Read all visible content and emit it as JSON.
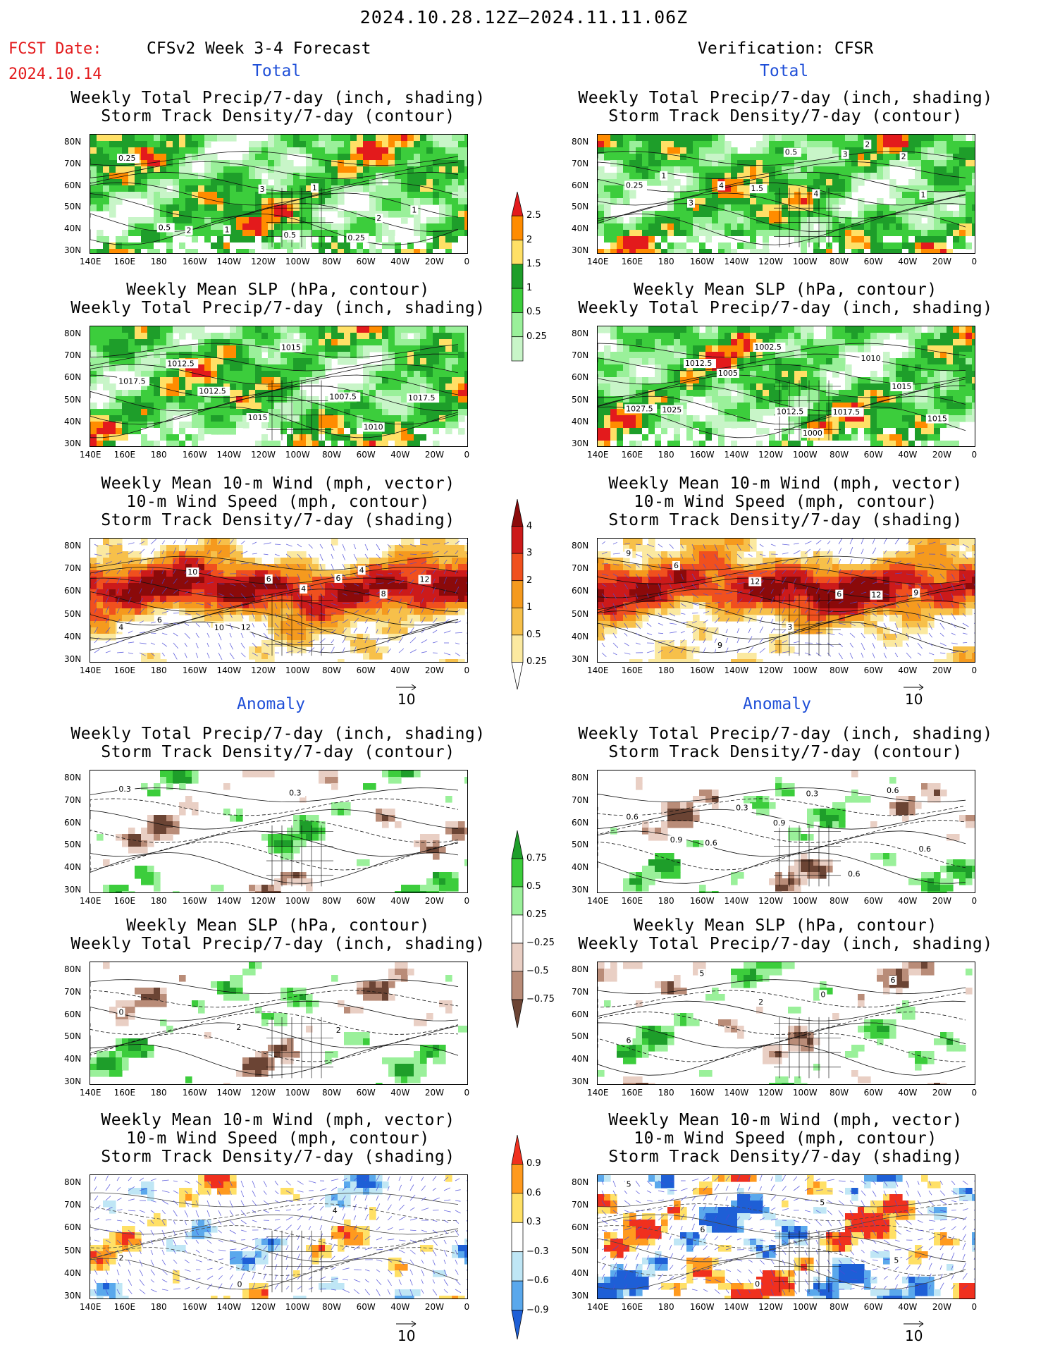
{
  "header": {
    "period": "2024.10.28.12Z–2024.11.11.06Z",
    "fcst_label": "FCST Date:",
    "fcst_date": "2024.10.14",
    "model_title": "CFSv2 Week 3-4 Forecast",
    "verification_title": "Verification: CFSR",
    "total_label": "Total",
    "anomaly_label": "Anomaly"
  },
  "titles": {
    "precip_storm": [
      "Weekly Total Precip/7-day (inch, shading)",
      "Storm Track Density/7-day (contour)"
    ],
    "slp_precip": [
      "Weekly Mean SLP (hPa, contour)",
      "Weekly Total Precip/7-day (inch, shading)"
    ],
    "wind": [
      "Weekly Mean 10-m Wind (mph, vector)",
      "10-m Wind Speed (mph, contour)",
      "Storm Track Density/7-day (shading)"
    ]
  },
  "axes": {
    "lat_labels": [
      "80N",
      "70N",
      "60N",
      "50N",
      "40N",
      "30N"
    ],
    "lon_labels": [
      "140E",
      "160E",
      "180",
      "160W",
      "140W",
      "120W",
      "100W",
      "80W",
      "60W",
      "40W",
      "20W",
      "0"
    ]
  },
  "colorbars": {
    "total_precip": {
      "labels": [
        "2.5",
        "2",
        "1.5",
        "1",
        "0.5",
        "0.25"
      ],
      "colors": [
        "#e31a1c",
        "#ff8c00",
        "#ffe066",
        "#1e9e2a",
        "#3ccd3c",
        "#9af09a",
        "#c8f5c8"
      ]
    },
    "total_storm": {
      "labels": [
        "4",
        "3",
        "2",
        "1",
        "0.5",
        "0.25"
      ],
      "colors": [
        "#8b0a0a",
        "#cc1a1a",
        "#f0501e",
        "#f59a1e",
        "#f7c04a",
        "#fbe9a0",
        "#ffffff"
      ]
    },
    "anom_precip": {
      "labels": [
        "0.75",
        "0.5",
        "0.25",
        "−0.25",
        "−0.5",
        "−0.75"
      ],
      "colors": [
        "#1e9e2a",
        "#3ccd3c",
        "#9af09a",
        "#ffffff",
        "#e9cfc4",
        "#b98c78",
        "#6b4434"
      ]
    },
    "anom_storm": {
      "labels": [
        "0.9",
        "0.6",
        "0.3",
        "−0.3",
        "−0.6",
        "−0.9"
      ],
      "colors": [
        "#f0301e",
        "#ff9a1e",
        "#ffe066",
        "#ffffff",
        "#bfe6f5",
        "#5aa8ec",
        "#1e5fd6"
      ]
    }
  },
  "vector_reference": "10",
  "contour_labels": {
    "fc_total_precip": [
      "0.25",
      "0.5",
      "2",
      "1",
      "3",
      "0.5",
      "1",
      "0.25",
      "2",
      "1"
    ],
    "obs_total_precip": [
      "0.25",
      "1",
      "3",
      "4",
      "1.5",
      "0.5",
      "4",
      "3",
      "2",
      "2",
      "1"
    ],
    "fc_total_slp": [
      "1017.5",
      "1012.5",
      "1012.5",
      "1015",
      "1015",
      "1007.5",
      "1010",
      "1017.5"
    ],
    "obs_total_slp": [
      "1027.5",
      "1025",
      "1012.5",
      "1005",
      "1002.5",
      "1012.5",
      "1000",
      "1017.5",
      "1010",
      "1015",
      "1015"
    ],
    "fc_total_wind": [
      "4",
      "6",
      "10",
      "10",
      "12",
      "6",
      "4",
      "6",
      "4",
      "8",
      "12"
    ],
    "obs_total_wind": [
      "9",
      "6",
      "9",
      "12",
      "3",
      "6",
      "12",
      "9"
    ],
    "fc_anom_precip": [
      "0.3",
      "0.3"
    ],
    "obs_anom_precip": [
      "0.6",
      "0.9",
      "0.6",
      "0.3",
      "0.9",
      "0.3",
      "0.6",
      "0.6",
      "0.6"
    ],
    "fc_anom_slp": [
      "0",
      "2",
      "2"
    ],
    "obs_anom_slp": [
      "6",
      "5",
      "2",
      "0",
      "6"
    ],
    "fc_anom_wind": [
      "2",
      "0",
      "4"
    ],
    "obs_anom_wind": [
      "5",
      "6",
      "0",
      "5",
      "5"
    ]
  },
  "colors": {
    "title_blue": "#1f4fd8",
    "fcst_red": "#e31a1c",
    "vector_blue": "#4a4ad8"
  }
}
